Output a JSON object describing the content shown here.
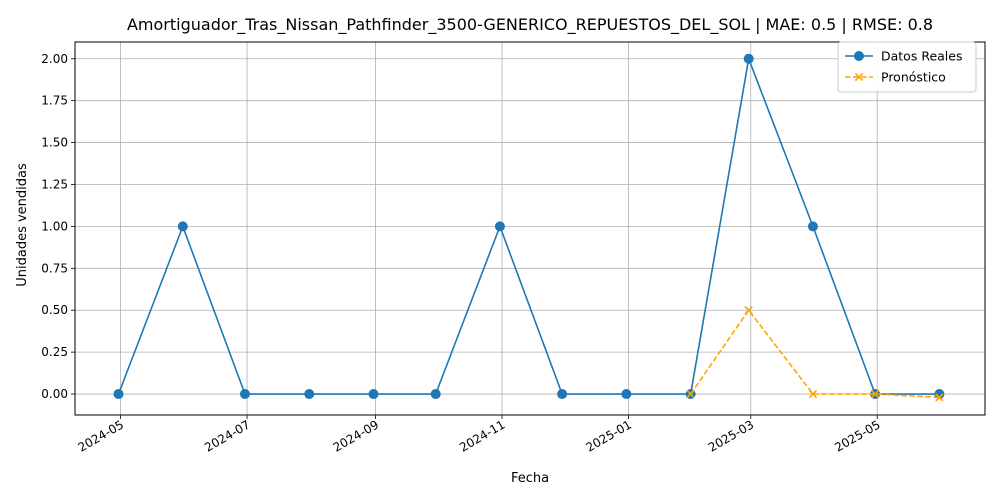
{
  "chart_data": {
    "type": "line",
    "title": "Amortiguador_Tras_Nissan_Pathfinder_3500-GENERICO_REPUESTOS_DEL_SOL | MAE: 0.5 | RMSE: 0.8",
    "xlabel": "Fecha",
    "ylabel": "Unidades vendidas",
    "xlim": [
      "2024-04-09",
      "2025-06-22"
    ],
    "ylim": [
      -0.125,
      2.1
    ],
    "x_ticks": [
      "2024-05",
      "2024-07",
      "2024-09",
      "2024-11",
      "2025-01",
      "2025-03",
      "2025-05"
    ],
    "y_ticks": [
      "0.00",
      "0.25",
      "0.50",
      "0.75",
      "1.00",
      "1.25",
      "1.50",
      "1.75",
      "2.00"
    ],
    "grid": true,
    "legend_position": "top-right",
    "series": [
      {
        "name": "Datos Reales",
        "color": "#1f77b4",
        "style": "solid",
        "marker": "circle",
        "x": [
          "2024-04-30",
          "2024-05-31",
          "2024-06-30",
          "2024-07-31",
          "2024-08-31",
          "2024-09-30",
          "2024-10-31",
          "2024-11-30",
          "2024-12-31",
          "2025-01-31",
          "2025-02-28",
          "2025-03-31",
          "2025-04-30",
          "2025-05-31"
        ],
        "values": [
          0,
          1,
          0,
          0,
          0,
          0,
          1,
          0,
          0,
          0,
          2,
          1,
          0,
          0
        ]
      },
      {
        "name": "Pronóstico",
        "color": "#ffa500",
        "style": "dashed",
        "marker": "x",
        "x": [
          "2025-01-31",
          "2025-02-28",
          "2025-03-31",
          "2025-04-30",
          "2025-05-31"
        ],
        "values": [
          0,
          0.5,
          0,
          0,
          -0.02
        ]
      }
    ]
  }
}
